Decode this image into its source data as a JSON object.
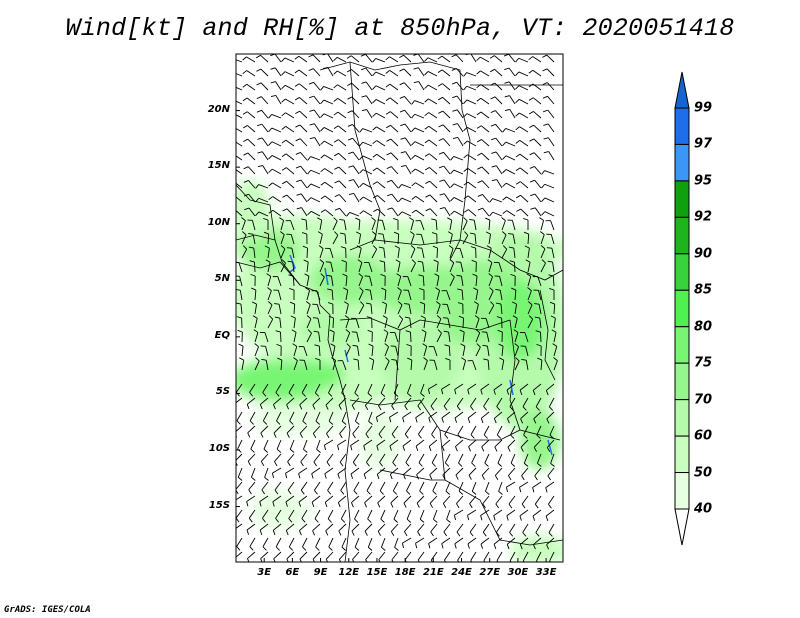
{
  "title": "Wind[kt] and RH[%] at 850hPa, VT: 2020051418",
  "footer": "GrADS: IGES/COLA",
  "map": {
    "lat_labels": [
      {
        "text": "20N",
        "lat": 20
      },
      {
        "text": "15N",
        "lat": 15
      },
      {
        "text": "10N",
        "lat": 10
      },
      {
        "text": "5N",
        "lat": 5
      },
      {
        "text": "EQ",
        "lat": 0
      },
      {
        "text": "5S",
        "lat": -5
      },
      {
        "text": "10S",
        "lat": -10
      },
      {
        "text": "15S",
        "lat": -15
      }
    ],
    "lon_labels": [
      {
        "text": "3E",
        "lon": 3
      },
      {
        "text": "6E",
        "lon": 6
      },
      {
        "text": "9E",
        "lon": 9
      },
      {
        "text": "12E",
        "lon": 12
      },
      {
        "text": "15E",
        "lon": 15
      },
      {
        "text": "18E",
        "lon": 18
      },
      {
        "text": "21E",
        "lon": 21
      },
      {
        "text": "24E",
        "lon": 24
      },
      {
        "text": "27E",
        "lon": 27
      },
      {
        "text": "30E",
        "lon": 30
      },
      {
        "text": "33E",
        "lon": 33
      }
    ],
    "lon_range": [
      0,
      34.8
    ],
    "lat_range": [
      -19.9,
      25
    ]
  },
  "colorbar": {
    "levels": [
      "99",
      "97",
      "95",
      "92",
      "90",
      "85",
      "80",
      "75",
      "70",
      "60",
      "50",
      "40"
    ],
    "colors": [
      "#1e6eeb",
      "#3c96f5",
      "#0fa00f",
      "#1eb41e",
      "#37d23c",
      "#50f050",
      "#78f573",
      "#96f58c",
      "#b4faaa",
      "#c8ffbe",
      "#e6ffe1"
    ],
    "over_color": "#1464d2",
    "under_color": "#ffffff"
  }
}
